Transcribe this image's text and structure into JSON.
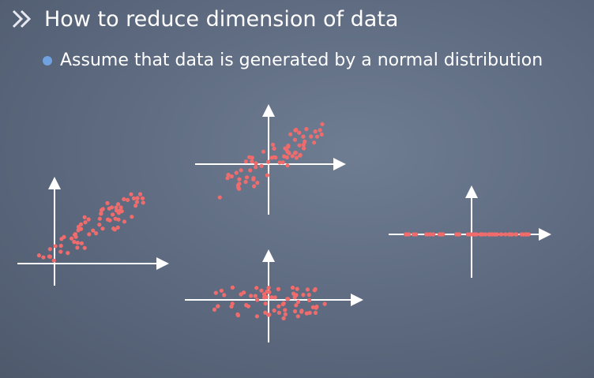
{
  "slide": {
    "title": "How to reduce dimension of data",
    "bullet": "Assume that data is generated by a normal distribution",
    "icons": {
      "title_marker": "double-chevron-right-icon",
      "bullet_marker": "bullet-dot-icon"
    }
  },
  "colors": {
    "points": "#f06c6c",
    "axes": "#ffffff",
    "bullet": "#6fa2de"
  }
}
